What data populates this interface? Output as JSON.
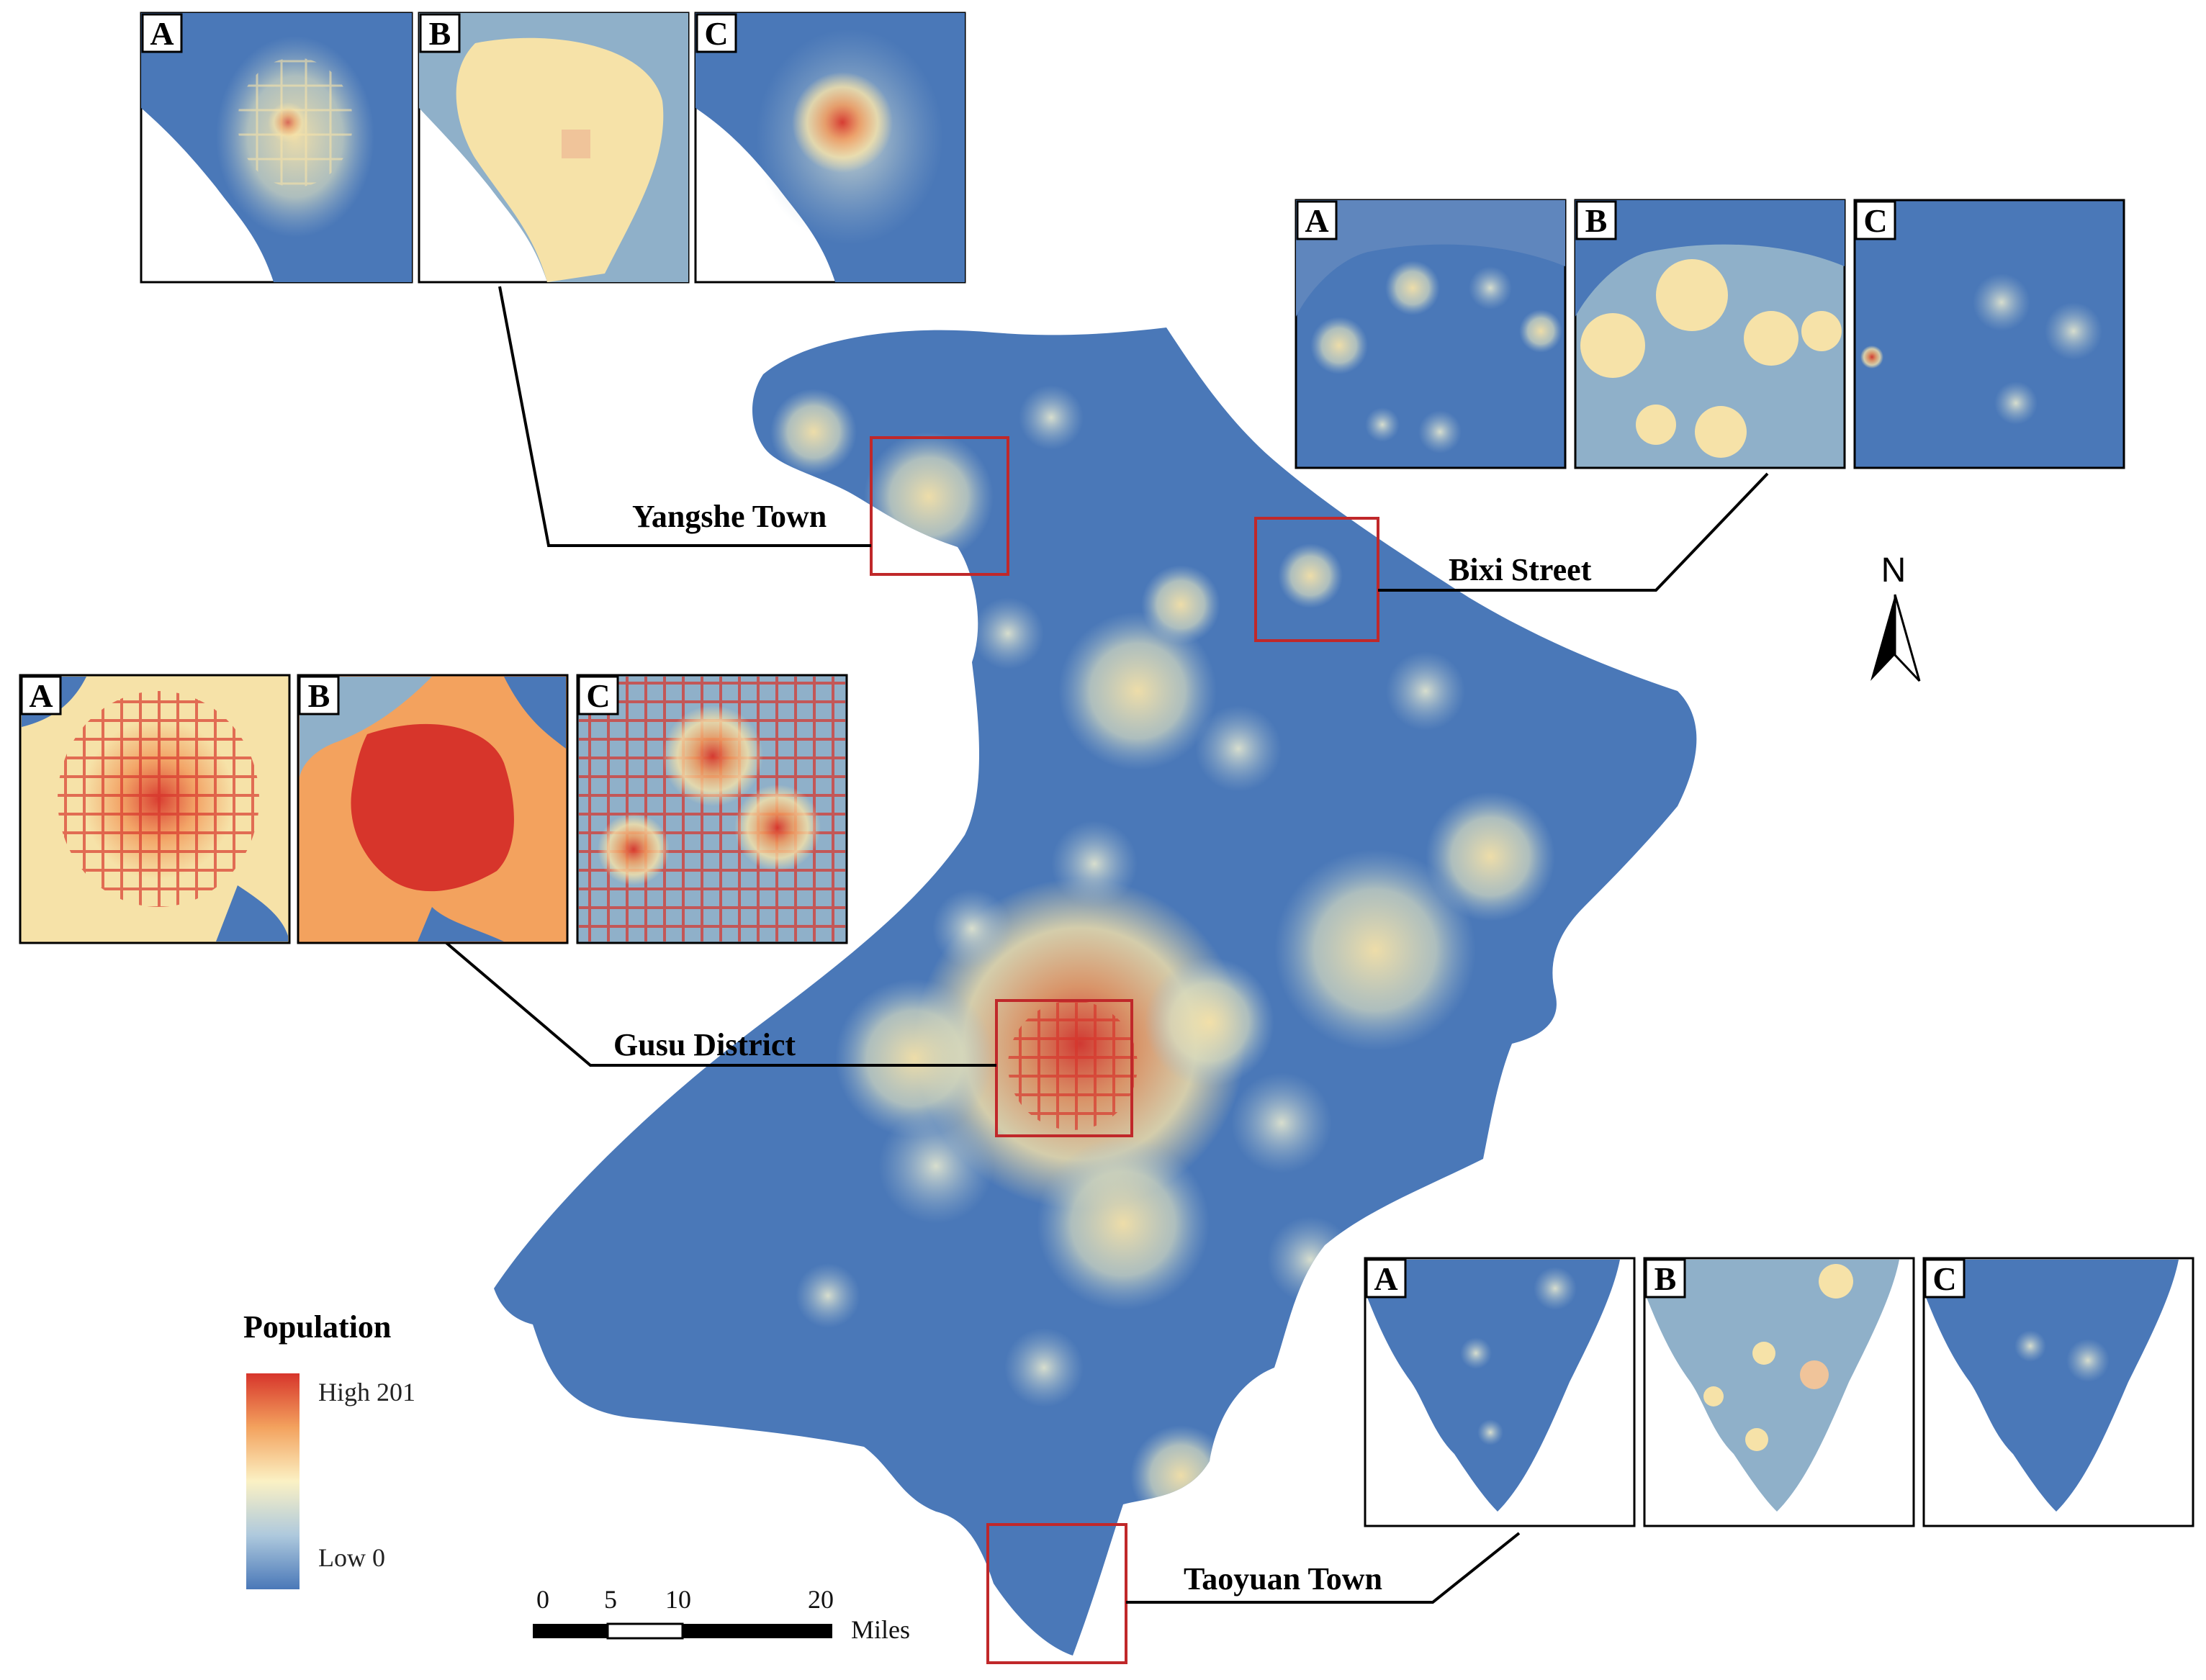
{
  "colors": {
    "low": "#4a78b8",
    "mid": "#f6e2a8",
    "high": "#d7352b",
    "frame": "#c0282a",
    "land": "#4a78b8"
  },
  "legend": {
    "title": "Population",
    "high_label": "High 201",
    "low_label": "Low 0",
    "ramp": [
      "#d7352b",
      "#f3a25e",
      "#fbf1c4",
      "#aec9dd",
      "#4a78b8"
    ]
  },
  "places": {
    "yangshe": "Yangshe Town",
    "bixi": "Bixi Street",
    "gusu": "Gusu District",
    "taoyuan": "Taoyuan Town"
  },
  "panel_letters": [
    "A",
    "B",
    "C"
  ],
  "scale_bar": {
    "ticks": [
      "0",
      "5",
      "10",
      "20"
    ],
    "unit": "Miles"
  },
  "north_arrow": {
    "label": "N"
  }
}
